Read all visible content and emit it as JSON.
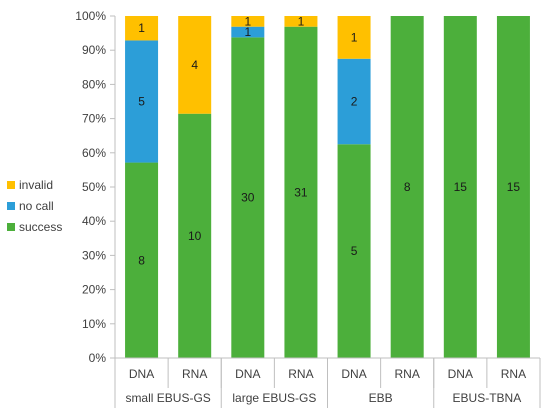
{
  "chart_data": {
    "type": "bar",
    "stacked": true,
    "normalized": true,
    "y_tick_labels": [
      "0%",
      "10%",
      "20%",
      "30%",
      "40%",
      "50%",
      "60%",
      "70%",
      "80%",
      "90%",
      "100%"
    ],
    "ylim": [
      0,
      100
    ],
    "categories": [
      "DNA",
      "RNA",
      "DNA",
      "RNA",
      "DNA",
      "RNA",
      "DNA",
      "RNA"
    ],
    "groups": [
      {
        "label": "small EBUS-GS",
        "span": 2
      },
      {
        "label": "large EBUS-GS",
        "span": 2
      },
      {
        "label": "EBB",
        "span": 2
      },
      {
        "label": "EBUS-TBNA",
        "span": 2
      }
    ],
    "series": [
      {
        "name": "success",
        "color": "#4caf3b",
        "values": [
          8,
          10,
          30,
          31,
          5,
          8,
          15,
          15
        ]
      },
      {
        "name": "no call",
        "color": "#2c9ed8",
        "values": [
          5,
          0,
          1,
          0,
          2,
          0,
          0,
          0
        ]
      },
      {
        "name": "invalid",
        "color": "#ffc000",
        "values": [
          1,
          4,
          1,
          1,
          1,
          0,
          0,
          0
        ]
      }
    ],
    "legend": {
      "position": "left",
      "order": [
        "invalid",
        "no call",
        "success"
      ]
    },
    "grid": false
  }
}
